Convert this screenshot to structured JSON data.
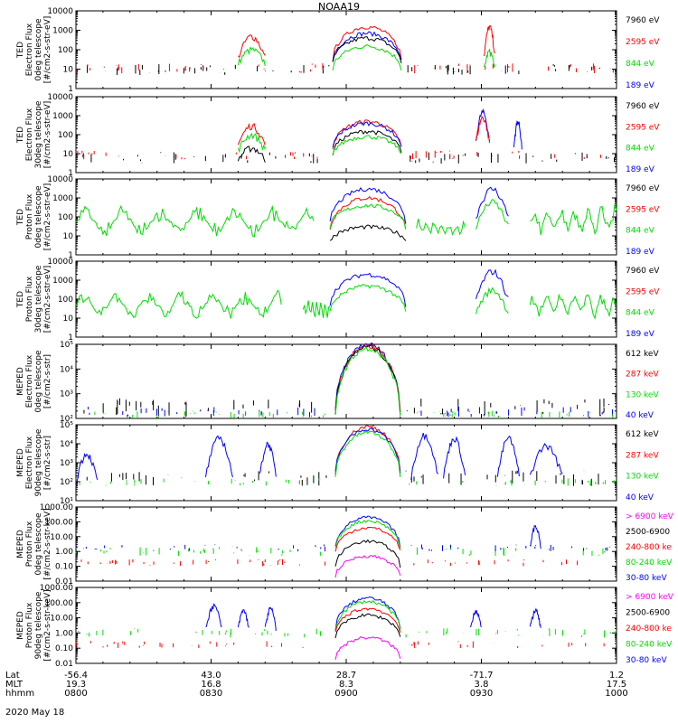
{
  "title": "NOAA19",
  "colors": {
    "black": "#000000",
    "red": "#ff0000",
    "green": "#00dd00",
    "blue": "#0000ff",
    "magenta": "#ff00ff"
  },
  "x_axis": {
    "row_names": [
      "Lat",
      "MLT",
      "hhmm"
    ],
    "ticks": [
      {
        "Lat": "-56.4",
        "MLT": "19.3",
        "hhmm": "0800"
      },
      {
        "Lat": "43.0",
        "MLT": "16.8",
        "hhmm": "0830"
      },
      {
        "Lat": "28.7",
        "MLT": "8.3",
        "hhmm": "0900"
      },
      {
        "Lat": "-71.7",
        "MLT": "3.8",
        "hhmm": "0930"
      },
      {
        "Lat": "1.2",
        "MLT": "17.5",
        "hhmm": "1000"
      }
    ],
    "date": "2020 May 18"
  },
  "chart_data": [
    {
      "type": "line",
      "ylabel": [
        "TED",
        "Electron Flux",
        "0deg telescope",
        "[#/cm2-s-str-eV]"
      ],
      "yscale": "log",
      "ylim": [
        1,
        10000
      ],
      "yticks": [
        "1",
        "10",
        "100",
        "1000",
        "10000"
      ],
      "legend": [
        {
          "label": "7960 eV",
          "color": "black"
        },
        {
          "label": "2595 eV",
          "color": "red"
        },
        {
          "label": "844 eV",
          "color": "green"
        },
        {
          "label": "189 eV",
          "color": "blue"
        }
      ],
      "series": [
        {
          "color": "black",
          "kind": "noise",
          "lo": 5,
          "hi": 18
        },
        {
          "color": "red",
          "kind": "noise",
          "lo": 6,
          "hi": 20
        },
        {
          "color": "red",
          "kind": "burst",
          "x0": 0.3,
          "x1": 0.35,
          "peak": 500,
          "base": 40
        },
        {
          "color": "green",
          "kind": "burst",
          "x0": 0.3,
          "x1": 0.35,
          "peak": 100,
          "base": 20
        },
        {
          "color": "red",
          "kind": "dome",
          "x0": 0.475,
          "x1": 0.602,
          "peak": 1500,
          "base": 30
        },
        {
          "color": "blue",
          "kind": "dome",
          "x0": 0.475,
          "x1": 0.602,
          "peak": 700,
          "base": 25
        },
        {
          "color": "black",
          "kind": "dome",
          "x0": 0.475,
          "x1": 0.602,
          "peak": 400,
          "base": 20
        },
        {
          "color": "green",
          "kind": "dome",
          "x0": 0.475,
          "x1": 0.602,
          "peak": 150,
          "base": 10
        },
        {
          "color": "red",
          "kind": "burst",
          "x0": 0.755,
          "x1": 0.775,
          "peak": 1500,
          "base": 50
        },
        {
          "color": "green",
          "kind": "burst",
          "x0": 0.755,
          "x1": 0.775,
          "peak": 80,
          "base": 10
        }
      ]
    },
    {
      "type": "line",
      "ylabel": [
        "TED",
        "Electron Flux",
        "30deg telescope",
        "[#/cm2-s-str-eV]"
      ],
      "yscale": "log",
      "ylim": [
        1,
        10000
      ],
      "yticks": [
        "1",
        "10",
        "100",
        "1000",
        "10000"
      ],
      "legend": [
        {
          "label": "7960 eV",
          "color": "black"
        },
        {
          "label": "2595 eV",
          "color": "red"
        },
        {
          "label": "844 eV",
          "color": "green"
        },
        {
          "label": "189 eV",
          "color": "blue"
        }
      ],
      "series": [
        {
          "color": "black",
          "kind": "noise",
          "lo": 3,
          "hi": 12
        },
        {
          "color": "red",
          "kind": "noise",
          "lo": 5,
          "hi": 15
        },
        {
          "color": "red",
          "kind": "burst",
          "x0": 0.3,
          "x1": 0.35,
          "peak": 300,
          "base": 30
        },
        {
          "color": "green",
          "kind": "burst",
          "x0": 0.3,
          "x1": 0.35,
          "peak": 100,
          "base": 15
        },
        {
          "color": "black",
          "kind": "burst",
          "x0": 0.3,
          "x1": 0.35,
          "peak": 20,
          "base": 5
        },
        {
          "color": "red",
          "kind": "dome",
          "x0": 0.475,
          "x1": 0.602,
          "peak": 500,
          "base": 20
        },
        {
          "color": "blue",
          "kind": "dome",
          "x0": 0.475,
          "x1": 0.602,
          "peak": 400,
          "base": 20
        },
        {
          "color": "black",
          "kind": "dome",
          "x0": 0.475,
          "x1": 0.602,
          "peak": 150,
          "base": 10
        },
        {
          "color": "green",
          "kind": "dome",
          "x0": 0.475,
          "x1": 0.602,
          "peak": 80,
          "base": 8
        },
        {
          "color": "blue",
          "kind": "burst",
          "x0": 0.74,
          "x1": 0.765,
          "peak": 1500,
          "base": 50
        },
        {
          "color": "red",
          "kind": "burst",
          "x0": 0.74,
          "x1": 0.765,
          "peak": 800,
          "base": 40
        },
        {
          "color": "blue",
          "kind": "burst",
          "x0": 0.81,
          "x1": 0.825,
          "peak": 500,
          "base": 20
        }
      ]
    },
    {
      "type": "line",
      "ylabel": [
        "TED",
        "Proton Flux",
        "0deg telescope",
        "[#/cm2-s-str-eV]"
      ],
      "yscale": "log",
      "ylim": [
        1,
        10000
      ],
      "yticks": [
        "1",
        "10",
        "100",
        "1000",
        "10000"
      ],
      "legend": [
        {
          "label": "7960 eV",
          "color": "black"
        },
        {
          "label": "2595 eV",
          "color": "red"
        },
        {
          "label": "844 eV",
          "color": "green"
        },
        {
          "label": "189 eV",
          "color": "blue"
        }
      ],
      "series": [
        {
          "color": "green",
          "kind": "wave",
          "x0": 0.0,
          "x1": 0.44,
          "lo": 8,
          "hi": 400
        },
        {
          "color": "green",
          "kind": "wave",
          "x0": 0.63,
          "x1": 0.72,
          "lo": 8,
          "hi": 80
        },
        {
          "color": "green",
          "kind": "wave",
          "x0": 0.84,
          "x1": 1.0,
          "lo": 8,
          "hi": 500
        },
        {
          "color": "blue",
          "kind": "dome",
          "x0": 0.47,
          "x1": 0.61,
          "peak": 3000,
          "base": 50
        },
        {
          "color": "red",
          "kind": "dome",
          "x0": 0.47,
          "x1": 0.61,
          "peak": 1000,
          "base": 20
        },
        {
          "color": "green",
          "kind": "dome",
          "x0": 0.47,
          "x1": 0.61,
          "peak": 400,
          "base": 30
        },
        {
          "color": "black",
          "kind": "dome",
          "x0": 0.47,
          "x1": 0.61,
          "peak": 30,
          "base": 5
        },
        {
          "color": "blue",
          "kind": "burst",
          "x0": 0.74,
          "x1": 0.8,
          "peak": 3000,
          "base": 100
        },
        {
          "color": "green",
          "kind": "burst",
          "x0": 0.74,
          "x1": 0.8,
          "peak": 600,
          "base": 30
        }
      ]
    },
    {
      "type": "line",
      "ylabel": [
        "TED",
        "Proton Flux",
        "30deg telescope",
        "[#/cm2-s-str-eV]"
      ],
      "yscale": "log",
      "ylim": [
        1,
        10000
      ],
      "yticks": [
        "1",
        "10",
        "100",
        "1000",
        "10000"
      ],
      "legend": [
        {
          "label": "7960 eV",
          "color": "black"
        },
        {
          "label": "2595 eV",
          "color": "red"
        },
        {
          "label": "844 eV",
          "color": "green"
        },
        {
          "label": "189 eV",
          "color": "blue"
        }
      ],
      "series": [
        {
          "color": "green",
          "kind": "wave",
          "x0": 0.0,
          "x1": 0.38,
          "lo": 8,
          "hi": 300
        },
        {
          "color": "green",
          "kind": "wave",
          "x0": 0.42,
          "x1": 0.47,
          "lo": 8,
          "hi": 100
        },
        {
          "color": "green",
          "kind": "wave",
          "x0": 0.84,
          "x1": 1.0,
          "lo": 8,
          "hi": 300
        },
        {
          "color": "blue",
          "kind": "dome",
          "x0": 0.47,
          "x1": 0.61,
          "peak": 2000,
          "base": 50
        },
        {
          "color": "green",
          "kind": "dome",
          "x0": 0.47,
          "x1": 0.61,
          "peak": 500,
          "base": 20
        },
        {
          "color": "blue",
          "kind": "burst",
          "x0": 0.74,
          "x1": 0.8,
          "peak": 3000,
          "base": 100
        },
        {
          "color": "green",
          "kind": "burst",
          "x0": 0.74,
          "x1": 0.8,
          "peak": 300,
          "base": 20
        }
      ]
    },
    {
      "type": "line",
      "ylabel": [
        "MEPED",
        "Electron Flux",
        "0deg telescope",
        "[#/cm2-s-str]"
      ],
      "yscale": "log",
      "ylim": [
        100,
        100000
      ],
      "yticks": [
        "10^2",
        "10^3",
        "10^4",
        "10^5"
      ],
      "legend": [
        {
          "label": "612 keV",
          "color": "black"
        },
        {
          "label": "287 keV",
          "color": "red"
        },
        {
          "label": "130 keV",
          "color": "green"
        },
        {
          "label": "40 keV",
          "color": "blue"
        }
      ],
      "series": [
        {
          "color": "black",
          "kind": "noise",
          "lo": 120,
          "hi": 700
        },
        {
          "color": "blue",
          "kind": "noise",
          "lo": 110,
          "hi": 300
        },
        {
          "color": "green",
          "kind": "noise",
          "lo": 100,
          "hi": 200
        },
        {
          "color": "blue",
          "kind": "dome",
          "x0": 0.48,
          "x1": 0.6,
          "peak": 100000,
          "base": 200
        },
        {
          "color": "red",
          "kind": "dome",
          "x0": 0.48,
          "x1": 0.6,
          "peak": 90000,
          "base": 200
        },
        {
          "color": "black",
          "kind": "dome",
          "x0": 0.48,
          "x1": 0.6,
          "peak": 80000,
          "base": 180
        },
        {
          "color": "green",
          "kind": "dome",
          "x0": 0.48,
          "x1": 0.6,
          "peak": 70000,
          "base": 150
        }
      ]
    },
    {
      "type": "line",
      "ylabel": [
        "MEPED",
        "Electron Flux",
        "90deg telescope",
        "[#/cm2-s-str]"
      ],
      "yscale": "log",
      "ylim": [
        10,
        100000
      ],
      "yticks": [
        "10^1",
        "10^2",
        "10^3",
        "10^4",
        "10^5"
      ],
      "legend": [
        {
          "label": "612 keV",
          "color": "black"
        },
        {
          "label": "287 keV",
          "color": "red"
        },
        {
          "label": "130 keV",
          "color": "green"
        },
        {
          "label": "40 keV",
          "color": "blue"
        }
      ],
      "series": [
        {
          "color": "black",
          "kind": "noise",
          "lo": 60,
          "hi": 400
        },
        {
          "color": "green",
          "kind": "noise",
          "lo": 60,
          "hi": 150
        },
        {
          "color": "blue",
          "kind": "burst",
          "x0": 0.0,
          "x1": 0.04,
          "peak": 3000,
          "base": 100
        },
        {
          "color": "blue",
          "kind": "burst",
          "x0": 0.24,
          "x1": 0.29,
          "peak": 20000,
          "base": 200
        },
        {
          "color": "blue",
          "kind": "burst",
          "x0": 0.34,
          "x1": 0.37,
          "peak": 10000,
          "base": 200
        },
        {
          "color": "red",
          "kind": "dome",
          "x0": 0.48,
          "x1": 0.6,
          "peak": 80000,
          "base": 300
        },
        {
          "color": "blue",
          "kind": "dome",
          "x0": 0.48,
          "x1": 0.6,
          "peak": 60000,
          "base": 300
        },
        {
          "color": "green",
          "kind": "dome",
          "x0": 0.48,
          "x1": 0.6,
          "peak": 40000,
          "base": 200
        },
        {
          "color": "blue",
          "kind": "burst",
          "x0": 0.62,
          "x1": 0.67,
          "peak": 30000,
          "base": 200
        },
        {
          "color": "blue",
          "kind": "burst",
          "x0": 0.68,
          "x1": 0.72,
          "peak": 20000,
          "base": 200
        },
        {
          "color": "blue",
          "kind": "burst",
          "x0": 0.78,
          "x1": 0.82,
          "peak": 20000,
          "base": 200
        },
        {
          "color": "blue",
          "kind": "burst",
          "x0": 0.84,
          "x1": 0.9,
          "peak": 8000,
          "base": 200
        }
      ]
    },
    {
      "type": "line",
      "ylabel": [
        "MEPED",
        "Proton Flux",
        "0deg telescope",
        "[#/cm2-s-str-keV]"
      ],
      "yscale": "log",
      "ylim": [
        0.01,
        1000
      ],
      "yticks": [
        "0.01",
        "0.10",
        "1.00",
        "10.00",
        "100.00",
        "1000.00"
      ],
      "legend": [
        {
          "label": "> 6900 keV",
          "color": "magenta"
        },
        {
          "label": "2500-6900",
          "color": "black"
        },
        {
          "label": "240-800 ke",
          "color": "red"
        },
        {
          "label": "80-240 keV",
          "color": "green"
        },
        {
          "label": "30-80 keV",
          "color": "blue"
        }
      ],
      "series": [
        {
          "color": "green",
          "kind": "noise",
          "lo": 0.5,
          "hi": 2
        },
        {
          "color": "blue",
          "kind": "noise",
          "lo": 1,
          "hi": 3
        },
        {
          "color": "red",
          "kind": "noise",
          "lo": 0.1,
          "hi": 0.3
        },
        {
          "color": "blue",
          "kind": "dome",
          "x0": 0.48,
          "x1": 0.6,
          "peak": 200,
          "base": 2
        },
        {
          "color": "green",
          "kind": "dome",
          "x0": 0.48,
          "x1": 0.6,
          "peak": 120,
          "base": 1.5
        },
        {
          "color": "red",
          "kind": "dome",
          "x0": 0.48,
          "x1": 0.6,
          "peak": 40,
          "base": 1
        },
        {
          "color": "black",
          "kind": "dome",
          "x0": 0.48,
          "x1": 0.6,
          "peak": 5,
          "base": 0.1
        },
        {
          "color": "magenta",
          "kind": "dome",
          "x0": 0.48,
          "x1": 0.6,
          "peak": 0.5,
          "base": 0.02
        },
        {
          "color": "blue",
          "kind": "burst",
          "x0": 0.84,
          "x1": 0.86,
          "peak": 50,
          "base": 2
        }
      ]
    },
    {
      "type": "line",
      "ylabel": [
        "MEPED",
        "Proton Flux",
        "90deg telescope",
        "[#/cm2-s-str-keV]"
      ],
      "yscale": "log",
      "ylim": [
        0.01,
        1000
      ],
      "yticks": [
        "0.01",
        "0.10",
        "1.00",
        "10.00",
        "100.00",
        "1000.00"
      ],
      "legend": [
        {
          "label": "> 6900 keV",
          "color": "magenta"
        },
        {
          "label": "2500-6900",
          "color": "black"
        },
        {
          "label": "240-800 ke",
          "color": "red"
        },
        {
          "label": "80-240 keV",
          "color": "green"
        },
        {
          "label": "30-80 keV",
          "color": "blue"
        }
      ],
      "series": [
        {
          "color": "green",
          "kind": "noise",
          "lo": 0.5,
          "hi": 2
        },
        {
          "color": "red",
          "kind": "noise",
          "lo": 0.1,
          "hi": 0.3
        },
        {
          "color": "blue",
          "kind": "burst",
          "x0": 0.24,
          "x1": 0.27,
          "peak": 60,
          "base": 2
        },
        {
          "color": "blue",
          "kind": "burst",
          "x0": 0.3,
          "x1": 0.32,
          "peak": 30,
          "base": 2
        },
        {
          "color": "blue",
          "kind": "burst",
          "x0": 0.35,
          "x1": 0.37,
          "peak": 40,
          "base": 2
        },
        {
          "color": "blue",
          "kind": "dome",
          "x0": 0.48,
          "x1": 0.6,
          "peak": 200,
          "base": 2
        },
        {
          "color": "green",
          "kind": "dome",
          "x0": 0.48,
          "x1": 0.6,
          "peak": 120,
          "base": 1.5
        },
        {
          "color": "red",
          "kind": "dome",
          "x0": 0.48,
          "x1": 0.6,
          "peak": 40,
          "base": 1
        },
        {
          "color": "black",
          "kind": "dome",
          "x0": 0.48,
          "x1": 0.6,
          "peak": 15,
          "base": 0.5
        },
        {
          "color": "magenta",
          "kind": "dome",
          "x0": 0.48,
          "x1": 0.6,
          "peak": 0.5,
          "base": 0.02
        },
        {
          "color": "blue",
          "kind": "burst",
          "x0": 0.73,
          "x1": 0.75,
          "peak": 30,
          "base": 2
        },
        {
          "color": "blue",
          "kind": "burst",
          "x0": 0.84,
          "x1": 0.86,
          "peak": 30,
          "base": 2
        }
      ]
    }
  ]
}
